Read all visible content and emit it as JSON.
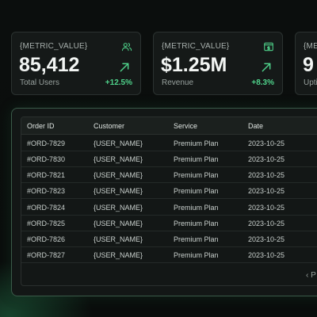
{
  "metrics": [
    {
      "label": "{METRIC_VALUE}",
      "value": "85,412",
      "caption": "Total Users",
      "change": "+12.5%",
      "icon": "users-icon"
    },
    {
      "label": "{METRIC_VALUE}",
      "value": "$1.25M",
      "caption": "Revenue",
      "change": "+8.3%",
      "icon": "wallet-icon"
    },
    {
      "label": "{ME",
      "value": "9",
      "caption": "Upti",
      "change": "",
      "icon": ""
    }
  ],
  "table": {
    "headers": [
      "Order ID",
      "Customer",
      "Service",
      "Date"
    ],
    "rows": [
      [
        "#ORD-7829",
        "{USER_NAME}",
        "Premium Plan",
        "2023-10-25"
      ],
      [
        "#ORD-7830",
        "{USER_NAME}",
        "Premium Plan",
        "2023-10-25"
      ],
      [
        "#ORD-7821",
        "{USER_NAME}",
        "Premium Plan",
        "2023-10-25"
      ],
      [
        "#ORD-7823",
        "{USER_NAME}",
        "Premium Plan",
        "2023-10-25"
      ],
      [
        "#ORD-7824",
        "{USER_NAME}",
        "Premium Plan",
        "2023-10-25"
      ],
      [
        "#ORD-7825",
        "{USER_NAME}",
        "Premium Plan",
        "2023-10-25"
      ],
      [
        "#ORD-7826",
        "{USER_NAME}",
        "Premium Plan",
        "2023-10-25"
      ],
      [
        "#ORD-7827",
        "{USER_NAME}",
        "Premium Plan",
        "2023-10-25"
      ]
    ]
  },
  "pagination": {
    "prev_icon": "chevron-left-icon",
    "label": "P"
  },
  "colors": {
    "accent": "#4fd38b",
    "background": "#0a0d0c",
    "card": "#151918",
    "border": "#2b3230"
  }
}
